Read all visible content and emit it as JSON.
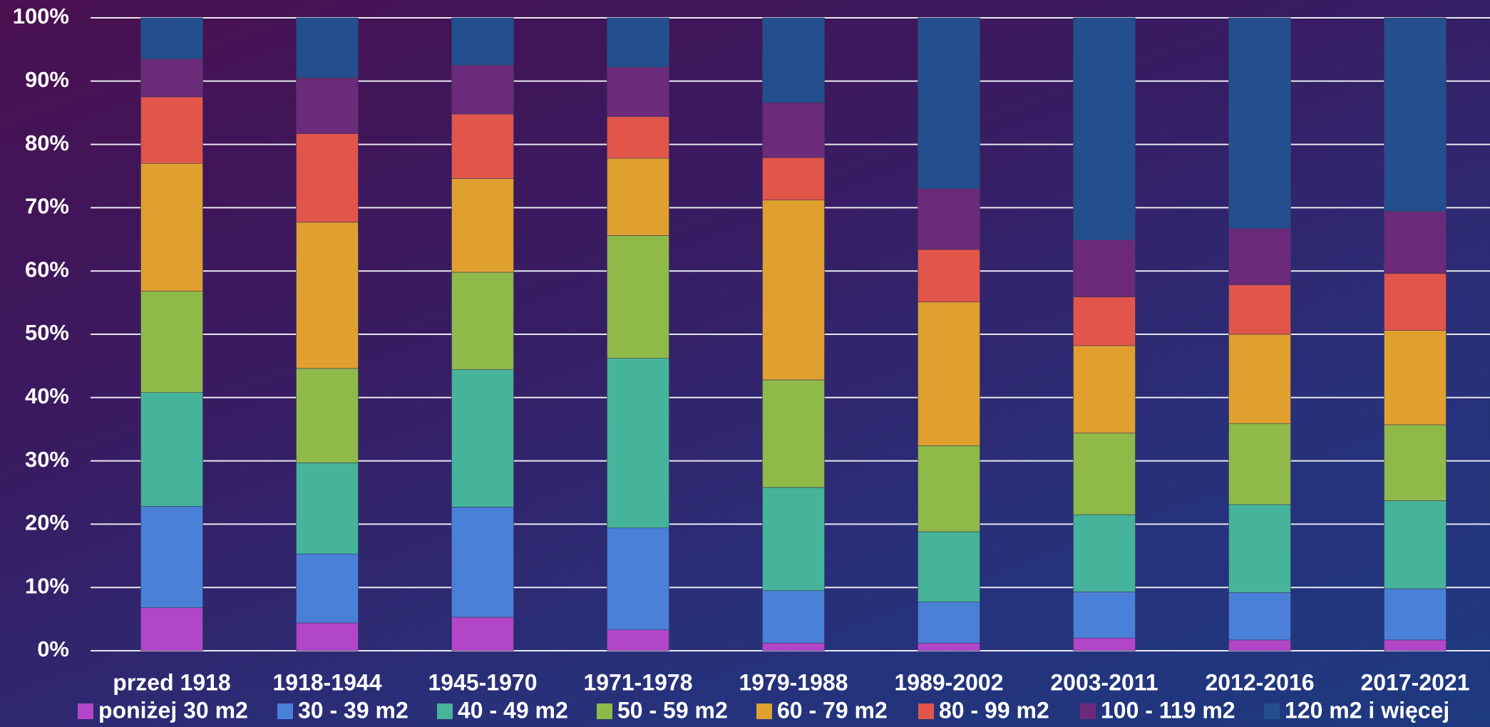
{
  "chart_data": {
    "type": "stacked_bar_percent",
    "categories": [
      "przed 1918",
      "1918-1944",
      "1945-1970",
      "1971-1978",
      "1979-1988",
      "1989-2002",
      "2003-2011",
      "2012-2016",
      "2017-2021"
    ],
    "series": [
      {
        "name": "poniżej 30 m2",
        "color": "#b146c8",
        "values": [
          6.8,
          4.4,
          5.3,
          3.3,
          1.2,
          1.2,
          2.0,
          1.7,
          1.7
        ]
      },
      {
        "name": "30 - 39 m2",
        "color": "#4a80d8",
        "values": [
          16.0,
          10.9,
          17.4,
          16.1,
          8.3,
          6.5,
          7.3,
          7.5,
          8.1
        ]
      },
      {
        "name": "40 - 49 m2",
        "color": "#45b49a",
        "values": [
          18.0,
          14.4,
          21.7,
          26.8,
          16.3,
          11.1,
          12.2,
          13.9,
          13.9
        ]
      },
      {
        "name": "50 - 59 m2",
        "color": "#8fba4a",
        "values": [
          16.0,
          14.9,
          15.4,
          19.4,
          17.0,
          13.6,
          12.9,
          12.8,
          12.0
        ]
      },
      {
        "name": "60 - 79 m2",
        "color": "#e0a030",
        "values": [
          20.2,
          23.1,
          14.8,
          12.2,
          28.4,
          22.7,
          13.8,
          14.1,
          14.9
        ]
      },
      {
        "name": "80 - 99 m2",
        "color": "#e2554a",
        "values": [
          10.5,
          14.0,
          10.2,
          6.6,
          6.7,
          8.3,
          7.7,
          7.8,
          9.0
        ]
      },
      {
        "name": "100 - 119 m2",
        "color": "#6b2a7a",
        "values": [
          6.0,
          8.8,
          7.7,
          7.8,
          8.7,
          9.6,
          9.0,
          8.9,
          9.8
        ]
      },
      {
        "name": "120 m2 i więcej",
        "color": "#234f8e",
        "values": [
          6.5,
          9.5,
          7.5,
          7.8,
          13.4,
          27.0,
          35.1,
          33.3,
          30.6
        ]
      }
    ],
    "ylim": [
      0,
      100
    ],
    "yticks": [
      {
        "value": 0,
        "label": "0%"
      },
      {
        "value": 10,
        "label": "10%"
      },
      {
        "value": 20,
        "label": "20%"
      },
      {
        "value": 30,
        "label": "30%"
      },
      {
        "value": 40,
        "label": "40%"
      },
      {
        "value": 50,
        "label": "50%"
      },
      {
        "value": 60,
        "label": "60%"
      },
      {
        "value": 70,
        "label": "70%"
      },
      {
        "value": 80,
        "label": "80%"
      },
      {
        "value": 90,
        "label": "90%"
      },
      {
        "value": 100,
        "label": "100%"
      }
    ],
    "grid": true,
    "legend": "bottom"
  }
}
